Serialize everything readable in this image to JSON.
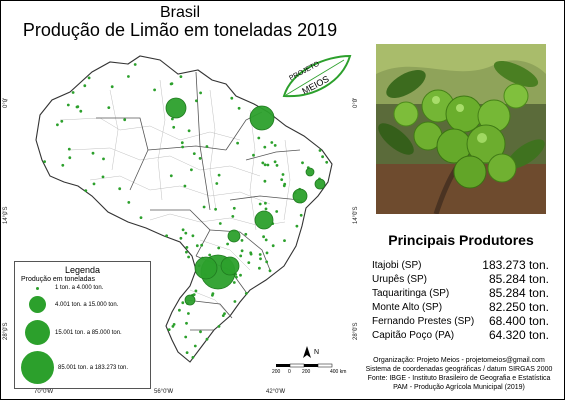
{
  "header": {
    "line1": "Brasil",
    "line2": "Produção de Limão em toneladas 2019"
  },
  "logo": {
    "line1": "PROJETO",
    "line2": "MEIOS"
  },
  "producers": {
    "title": "Principais Produtores",
    "items": [
      {
        "name": "Itajobi (SP)",
        "value": "183.273 ton."
      },
      {
        "name": "Urupês (SP)",
        "value": "85.284 ton."
      },
      {
        "name": "Taquaritinga (SP)",
        "value": "85.284 ton."
      },
      {
        "name": "Monte Alto (SP)",
        "value": "82.250 ton."
      },
      {
        "name": "Fernando Prestes (SP)",
        "value": "68.400 ton."
      },
      {
        "name": "Capitão Poço (PA)",
        "value": "64.320 ton."
      }
    ]
  },
  "legend": {
    "title": "Legenda",
    "subtitle": "Produção em toneladas",
    "classes": [
      {
        "label": "1 ton. a 4.000 ton."
      },
      {
        "label": "4.001 ton. a 15.000 ton."
      },
      {
        "label": "15.001 ton. a 85.000 ton."
      },
      {
        "label": "85.001 ton. a 183.273 ton."
      }
    ]
  },
  "credits": {
    "line1": "Organização: Projeto Meios - projetomeios@gmail.com",
    "line2": "Sistema de coordenadas geográficas / datum SIRGAS 2000",
    "line3": "Fonte: IBGE - Instituto Brasileiro de Geografia e Estatística",
    "line4": "PAM - Produção Agrícola Municipal (2019)"
  },
  "scale": {
    "labels": [
      "200",
      "0",
      "200",
      "400 km"
    ]
  },
  "north": {
    "label": "N"
  },
  "graticule": {
    "bottom": [
      "70°0'W",
      "56°0'W",
      "42°0'W"
    ],
    "left": [
      "0°0'",
      "14°0'S",
      "28°0'S"
    ],
    "right": [
      "0°0'",
      "14°0'S",
      "28°0'S"
    ]
  },
  "colors": {
    "symbol": "#2ca02c",
    "symbol_edge": "#1f7a1f",
    "boundary": "#9a9a9a",
    "state_boundary": "#555555"
  }
}
